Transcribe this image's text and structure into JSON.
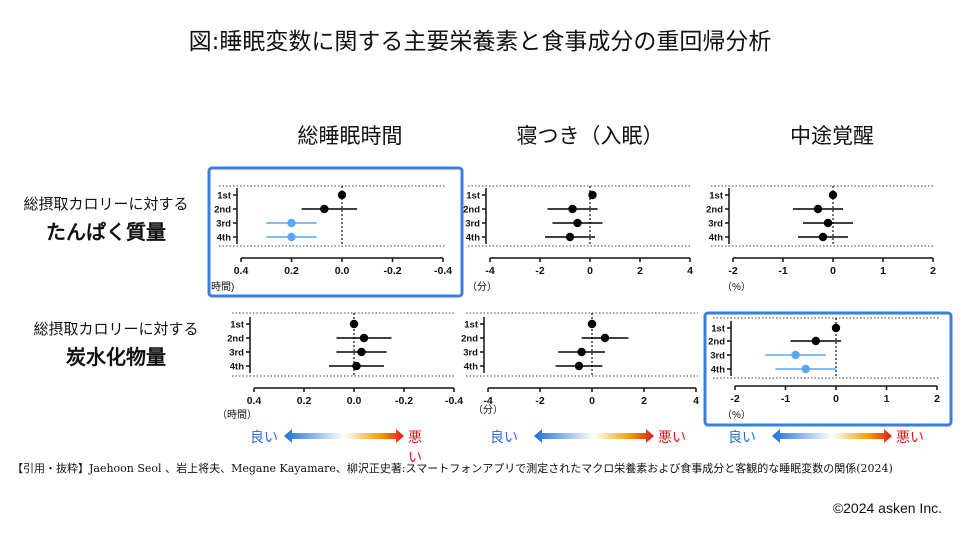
{
  "title": "図:睡眠変数に関する主要栄養素と食事成分の重回帰分析",
  "columns": [
    "総睡眠時間",
    "寝つき（入眠）",
    "中途覚醒"
  ],
  "rows": [
    {
      "small": "総摂取カロリーに対する",
      "big": "たんぱく質量"
    },
    {
      "small": "総摂取カロリーに対する",
      "big": "炭水化物量"
    }
  ],
  "legend": {
    "good": "良い",
    "bad": "悪い"
  },
  "citation": "【引用・抜粋】Jaehoon Seol 、岩上将夫、Megane Kayamare、柳沢正史著:スマートフォンアプリで測定されたマクロ栄養素および食事成分と客観的な睡眠変数の関係(2024)",
  "copyright": "©2024 asken Inc.",
  "colors": {
    "highlight": "#3a7de0",
    "significant": "#5aa5f0",
    "point": "#000000",
    "good": "#1f6fd6",
    "bad": "#e0181f"
  },
  "chart_data": [
    {
      "type": "scatter",
      "panel": "protein-total-sleep",
      "quartiles": [
        "1st",
        "2nd",
        "3rd",
        "4th"
      ],
      "estimates": [
        0.0,
        0.07,
        0.2,
        0.2
      ],
      "ci_low": [
        0.0,
        -0.06,
        0.1,
        0.1
      ],
      "ci_high": [
        0.0,
        0.16,
        0.3,
        0.3
      ],
      "significant": [
        false,
        false,
        true,
        true
      ],
      "xlim": [
        0.4,
        -0.4
      ],
      "xticks": [
        "0.4",
        "0.2",
        "0.0",
        "-0.2",
        "-0.4"
      ],
      "unit": "時間)",
      "highlighted": true
    },
    {
      "type": "scatter",
      "panel": "protein-sleep-onset",
      "quartiles": [
        "1st",
        "2nd",
        "3rd",
        "4th"
      ],
      "estimates": [
        0.1,
        -0.7,
        -0.5,
        -0.8
      ],
      "ci_low": [
        0.1,
        -1.7,
        -1.5,
        -1.8
      ],
      "ci_high": [
        0.1,
        0.3,
        0.5,
        0.2
      ],
      "significant": [
        false,
        false,
        false,
        false
      ],
      "xlim": [
        -4,
        4
      ],
      "xticks": [
        "-4",
        "-2",
        "0",
        "2",
        "4"
      ],
      "unit": "（分）",
      "highlighted": false
    },
    {
      "type": "scatter",
      "panel": "protein-waso",
      "quartiles": [
        "1st",
        "2nd",
        "3rd",
        "4th"
      ],
      "estimates": [
        0.0,
        -0.3,
        -0.1,
        -0.2
      ],
      "ci_low": [
        0.0,
        -0.8,
        -0.6,
        -0.7
      ],
      "ci_high": [
        0.0,
        0.2,
        0.4,
        0.3
      ],
      "significant": [
        false,
        false,
        false,
        false
      ],
      "xlim": [
        -2,
        2
      ],
      "xticks": [
        "-2",
        "-1",
        "0",
        "1",
        "2"
      ],
      "unit": "（%）",
      "highlighted": false
    },
    {
      "type": "scatter",
      "panel": "carb-total-sleep",
      "quartiles": [
        "1st",
        "2nd",
        "3rd",
        "4th"
      ],
      "estimates": [
        0.0,
        -0.04,
        -0.03,
        -0.01
      ],
      "ci_low": [
        0.0,
        -0.15,
        -0.13,
        -0.12
      ],
      "ci_high": [
        0.0,
        0.07,
        0.07,
        0.1
      ],
      "significant": [
        false,
        false,
        false,
        false
      ],
      "xlim": [
        0.4,
        -0.4
      ],
      "xticks": [
        "0.4",
        "0.2",
        "0.0",
        "-0.2",
        "-0.4"
      ],
      "unit": "（時間）",
      "highlighted": false
    },
    {
      "type": "scatter",
      "panel": "carb-sleep-onset",
      "quartiles": [
        "1st",
        "2nd",
        "3rd",
        "4th"
      ],
      "estimates": [
        0.0,
        0.5,
        -0.4,
        -0.5
      ],
      "ci_low": [
        0.0,
        -0.4,
        -1.3,
        -1.4
      ],
      "ci_high": [
        0.0,
        1.4,
        0.5,
        0.4
      ],
      "significant": [
        false,
        false,
        false,
        false
      ],
      "xlim": [
        -4,
        4
      ],
      "xticks": [
        "-4",
        "-2",
        "0",
        "2",
        "4"
      ],
      "unit": "（分）",
      "highlighted": false
    },
    {
      "type": "scatter",
      "panel": "carb-waso",
      "quartiles": [
        "1st",
        "2nd",
        "3rd",
        "4th"
      ],
      "estimates": [
        0.0,
        -0.4,
        -0.8,
        -0.6
      ],
      "ci_low": [
        0.0,
        -0.9,
        -1.4,
        -1.2
      ],
      "ci_high": [
        0.0,
        0.1,
        -0.2,
        0.0
      ],
      "significant": [
        false,
        false,
        true,
        true
      ],
      "xlim": [
        -2,
        2
      ],
      "xticks": [
        "-2",
        "-1",
        "0",
        "1",
        "2"
      ],
      "unit": "（%）",
      "highlighted": true
    }
  ]
}
